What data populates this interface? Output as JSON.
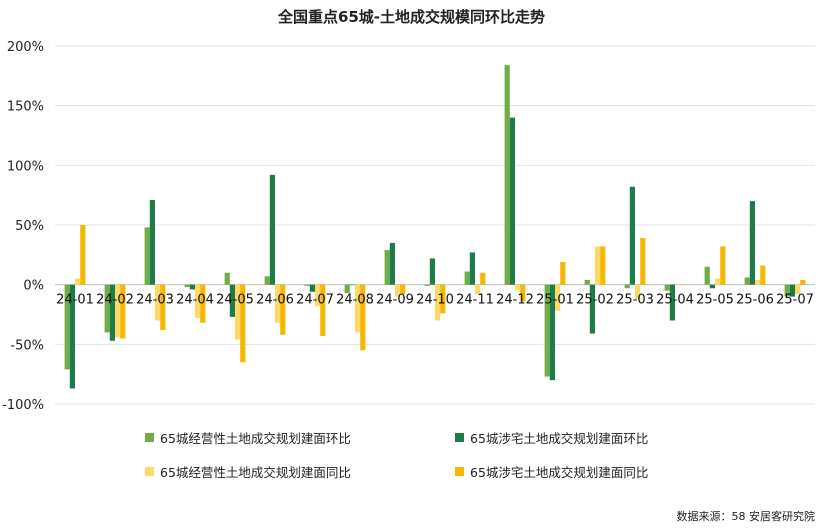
{
  "chart_data": {
    "type": "bar",
    "title": "全国重点65城-土地成交规模同环比走势",
    "categories": [
      "24-01",
      "24-02",
      "24-03",
      "24-04",
      "24-05",
      "24-06",
      "24-07",
      "24-08",
      "24-09",
      "24-10",
      "24-11",
      "24-12",
      "25-01",
      "25-02",
      "25-03",
      "25-04",
      "25-05",
      "25-06",
      "25-07"
    ],
    "ylim": [
      -100,
      200
    ],
    "yticks": [
      -100,
      -50,
      0,
      50,
      100,
      150,
      200
    ],
    "ytick_labels": [
      "-100%",
      "-50%",
      "0%",
      "50%",
      "100%",
      "150%",
      "200%"
    ],
    "grid": true,
    "legend_placement": "bottom",
    "series": [
      {
        "name": "65城经营性土地成交规划建面环比",
        "color": "#70ad47",
        "values": [
          -71,
          -40,
          48,
          -2,
          10,
          7,
          -1,
          -7,
          29,
          -1,
          11,
          184,
          -77,
          4,
          -3,
          -5,
          15,
          6,
          -10
        ]
      },
      {
        "name": "65城涉宅土地成交规划建面环比",
        "color": "#1e7b4a",
        "values": [
          -87,
          -47,
          71,
          -4,
          -27,
          92,
          -6,
          0,
          35,
          22,
          27,
          140,
          -80,
          -41,
          82,
          -30,
          -3,
          70,
          -10
        ]
      },
      {
        "name": "65城经营性土地成交规划建面同比",
        "color": "#ffd966",
        "values": [
          5,
          -44,
          -30,
          -28,
          -46,
          -32,
          -18,
          -40,
          -10,
          -30,
          -8,
          -5,
          -22,
          32,
          -12,
          0,
          5,
          4,
          -8
        ]
      },
      {
        "name": "65城涉宅土地成交规划建面同比",
        "color": "#f5b800",
        "values": [
          50,
          -45,
          -38,
          -32,
          -65,
          -42,
          -43,
          -55,
          -8,
          -24,
          10,
          -14,
          19,
          32,
          39,
          0,
          32,
          16,
          4
        ]
      }
    ]
  },
  "source": "数据来源：58 安居客研究院"
}
